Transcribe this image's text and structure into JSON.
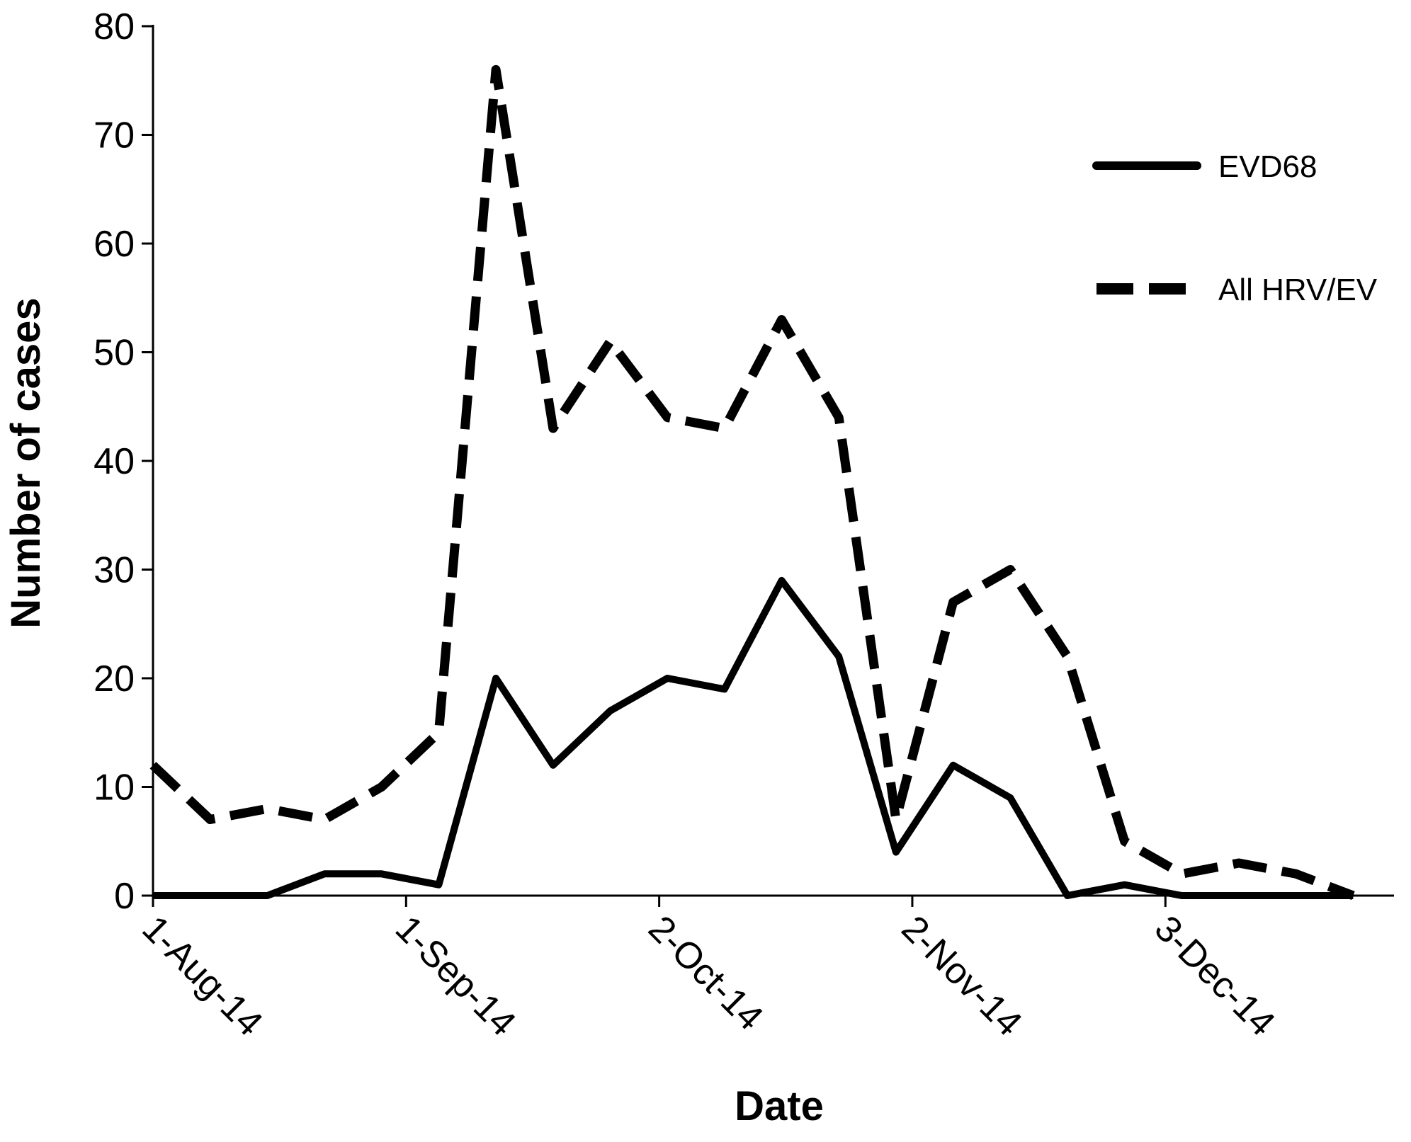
{
  "chart_data": {
    "type": "line",
    "title": "",
    "xlabel": "Date",
    "ylabel": "Number of cases",
    "ylim": [
      0,
      80
    ],
    "yticks": [
      0,
      10,
      20,
      30,
      40,
      50,
      60,
      70,
      80
    ],
    "xlim": [
      "2014-08-01",
      "2014-12-31"
    ],
    "x_tick_dates": [
      "2014-08-01",
      "2014-09-01",
      "2014-10-02",
      "2014-11-02",
      "2014-12-03"
    ],
    "x_tick_labels": [
      "1-Aug-14",
      "1-Sep-14",
      "2-Oct-14",
      "2-Nov-14",
      "3-Dec-14"
    ],
    "grid": false,
    "legend_position": "top-right",
    "x": [
      "2014-08-01",
      "2014-08-08",
      "2014-08-15",
      "2014-08-22",
      "2014-08-29",
      "2014-09-05",
      "2014-09-12",
      "2014-09-19",
      "2014-09-26",
      "2014-10-03",
      "2014-10-10",
      "2014-10-17",
      "2014-10-24",
      "2014-10-31",
      "2014-11-07",
      "2014-11-14",
      "2014-11-21",
      "2014-11-28",
      "2014-12-05",
      "2014-12-12",
      "2014-12-19",
      "2014-12-26"
    ],
    "series": [
      {
        "name": "EVD68",
        "style": "solid",
        "color": "#000000",
        "values": [
          0,
          0,
          0,
          2,
          2,
          1,
          20,
          12,
          17,
          20,
          19,
          29,
          22,
          4,
          12,
          9,
          0,
          1,
          0,
          0,
          0,
          0
        ]
      },
      {
        "name": "All HRV/EV",
        "style": "dashed",
        "color": "#000000",
        "values": [
          12,
          7,
          8,
          7,
          10,
          15,
          76,
          43,
          51,
          44,
          43,
          53,
          44,
          7,
          27,
          30,
          22,
          5,
          2,
          3,
          2,
          0
        ]
      }
    ]
  }
}
